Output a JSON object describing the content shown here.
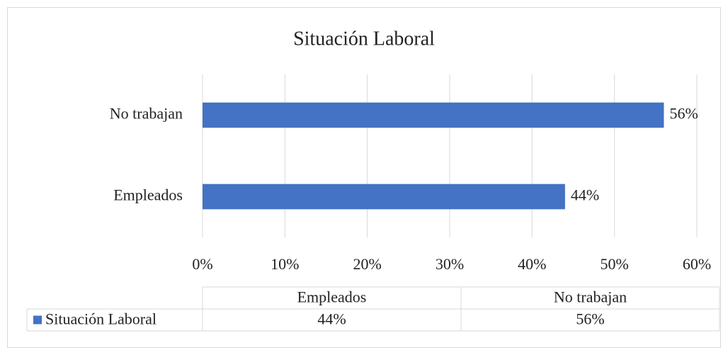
{
  "chart_data": {
    "type": "bar",
    "orientation": "horizontal",
    "title": "Situación Laboral",
    "categories": [
      "Empleados",
      "No trabajan"
    ],
    "series": [
      {
        "name": "Situación Laboral",
        "color": "#4472c4",
        "values": [
          44,
          56
        ],
        "value_labels": [
          "44%",
          "56%"
        ]
      }
    ],
    "xlim": [
      0,
      60
    ],
    "xticks": [
      {
        "value": 0,
        "label": "0%"
      },
      {
        "value": 10,
        "label": "10%"
      },
      {
        "value": 20,
        "label": "20%"
      },
      {
        "value": 30,
        "label": "30%"
      },
      {
        "value": 40,
        "label": "40%"
      },
      {
        "value": 50,
        "label": "50%"
      },
      {
        "value": 60,
        "label": "60%"
      }
    ],
    "grid": true,
    "data_table": true
  }
}
